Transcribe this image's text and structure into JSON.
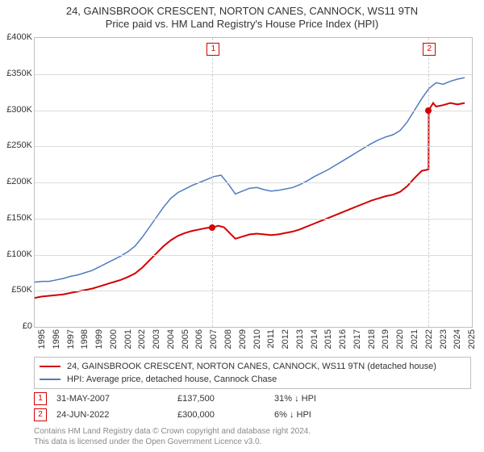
{
  "title_line1": "24, GAINSBROOK CRESCENT, NORTON CANES, CANNOCK, WS11 9TN",
  "title_line2": "Price paid vs. HM Land Registry's House Price Index (HPI)",
  "chart": {
    "type": "line",
    "x_years": [
      1995,
      1996,
      1997,
      1998,
      1999,
      2000,
      2001,
      2002,
      2003,
      2004,
      2005,
      2006,
      2007,
      2008,
      2009,
      2010,
      2011,
      2012,
      2013,
      2014,
      2015,
      2016,
      2017,
      2018,
      2019,
      2020,
      2021,
      2022,
      2023,
      2024,
      2025
    ],
    "xlim": [
      1995,
      2025.5
    ],
    "ylim": [
      0,
      400000
    ],
    "ytick_step": 50000,
    "ytick_labels": [
      "£0",
      "£50K",
      "£100K",
      "£150K",
      "£200K",
      "£250K",
      "£300K",
      "£350K",
      "£400K"
    ],
    "grid_color": "#dcdcdc",
    "border_color": "#bfbfbf",
    "background_color": "#ffffff",
    "series": [
      {
        "name": "property",
        "label": "24, GAINSBROOK CRESCENT, NORTON CANES, CANNOCK, WS11 9TN (detached house)",
        "color": "#d40000",
        "line_width": 2,
        "data": [
          [
            1995.0,
            40000
          ],
          [
            1995.5,
            42000
          ],
          [
            1996.0,
            43000
          ],
          [
            1996.5,
            44000
          ],
          [
            1997.0,
            45000
          ],
          [
            1997.5,
            47000
          ],
          [
            1998.0,
            49000
          ],
          [
            1998.5,
            51000
          ],
          [
            1999.0,
            53000
          ],
          [
            1999.5,
            56000
          ],
          [
            2000.0,
            59000
          ],
          [
            2000.5,
            62000
          ],
          [
            2001.0,
            65000
          ],
          [
            2001.5,
            69000
          ],
          [
            2002.0,
            74000
          ],
          [
            2002.5,
            82000
          ],
          [
            2003.0,
            92000
          ],
          [
            2003.5,
            102000
          ],
          [
            2004.0,
            112000
          ],
          [
            2004.5,
            120000
          ],
          [
            2005.0,
            126000
          ],
          [
            2005.5,
            130000
          ],
          [
            2006.0,
            133000
          ],
          [
            2006.5,
            135000
          ],
          [
            2007.0,
            137000
          ],
          [
            2007.4,
            137500
          ],
          [
            2007.8,
            140000
          ],
          [
            2008.2,
            138000
          ],
          [
            2008.7,
            128000
          ],
          [
            2009.0,
            122000
          ],
          [
            2009.5,
            125000
          ],
          [
            2010.0,
            128000
          ],
          [
            2010.5,
            129000
          ],
          [
            2011.0,
            128000
          ],
          [
            2011.5,
            127000
          ],
          [
            2012.0,
            128000
          ],
          [
            2012.5,
            130000
          ],
          [
            2013.0,
            132000
          ],
          [
            2013.5,
            135000
          ],
          [
            2014.0,
            139000
          ],
          [
            2014.5,
            143000
          ],
          [
            2015.0,
            147000
          ],
          [
            2015.5,
            151000
          ],
          [
            2016.0,
            155000
          ],
          [
            2016.5,
            159000
          ],
          [
            2017.0,
            163000
          ],
          [
            2017.5,
            167000
          ],
          [
            2018.0,
            171000
          ],
          [
            2018.5,
            175000
          ],
          [
            2019.0,
            178000
          ],
          [
            2019.5,
            181000
          ],
          [
            2020.0,
            183000
          ],
          [
            2020.5,
            187000
          ],
          [
            2021.0,
            195000
          ],
          [
            2021.5,
            206000
          ],
          [
            2022.0,
            216000
          ],
          [
            2022.48,
            218000
          ],
          [
            2022.49,
            300000
          ],
          [
            2022.8,
            310000
          ],
          [
            2023.0,
            305000
          ],
          [
            2023.5,
            307000
          ],
          [
            2024.0,
            310000
          ],
          [
            2024.5,
            308000
          ],
          [
            2025.0,
            310000
          ]
        ]
      },
      {
        "name": "hpi",
        "label": "HPI: Average price, detached house, Cannock Chase",
        "color": "#4f7bbf",
        "line_width": 1.5,
        "data": [
          [
            1995.0,
            62000
          ],
          [
            1995.5,
            63000
          ],
          [
            1996.0,
            63000
          ],
          [
            1996.5,
            65000
          ],
          [
            1997.0,
            67000
          ],
          [
            1997.5,
            70000
          ],
          [
            1998.0,
            72000
          ],
          [
            1998.5,
            75000
          ],
          [
            1999.0,
            78000
          ],
          [
            1999.5,
            83000
          ],
          [
            2000.0,
            88000
          ],
          [
            2000.5,
            93000
          ],
          [
            2001.0,
            98000
          ],
          [
            2001.5,
            104000
          ],
          [
            2002.0,
            112000
          ],
          [
            2002.5,
            124000
          ],
          [
            2003.0,
            138000
          ],
          [
            2003.5,
            152000
          ],
          [
            2004.0,
            166000
          ],
          [
            2004.5,
            178000
          ],
          [
            2005.0,
            186000
          ],
          [
            2005.5,
            191000
          ],
          [
            2006.0,
            196000
          ],
          [
            2006.5,
            200000
          ],
          [
            2007.0,
            204000
          ],
          [
            2007.5,
            208000
          ],
          [
            2008.0,
            210000
          ],
          [
            2008.5,
            198000
          ],
          [
            2009.0,
            184000
          ],
          [
            2009.5,
            188000
          ],
          [
            2010.0,
            192000
          ],
          [
            2010.5,
            193000
          ],
          [
            2011.0,
            190000
          ],
          [
            2011.5,
            188000
          ],
          [
            2012.0,
            189000
          ],
          [
            2012.5,
            191000
          ],
          [
            2013.0,
            193000
          ],
          [
            2013.5,
            197000
          ],
          [
            2014.0,
            202000
          ],
          [
            2014.5,
            208000
          ],
          [
            2015.0,
            213000
          ],
          [
            2015.5,
            218000
          ],
          [
            2016.0,
            224000
          ],
          [
            2016.5,
            230000
          ],
          [
            2017.0,
            236000
          ],
          [
            2017.5,
            242000
          ],
          [
            2018.0,
            248000
          ],
          [
            2018.5,
            254000
          ],
          [
            2019.0,
            259000
          ],
          [
            2019.5,
            263000
          ],
          [
            2020.0,
            266000
          ],
          [
            2020.5,
            272000
          ],
          [
            2021.0,
            284000
          ],
          [
            2021.5,
            300000
          ],
          [
            2022.0,
            316000
          ],
          [
            2022.5,
            330000
          ],
          [
            2023.0,
            338000
          ],
          [
            2023.5,
            336000
          ],
          [
            2024.0,
            340000
          ],
          [
            2024.5,
            343000
          ],
          [
            2025.0,
            345000
          ]
        ]
      }
    ],
    "sale_markers": [
      {
        "n": "1",
        "year": 2007.4,
        "price": 137500,
        "color": "#d40000"
      },
      {
        "n": "2",
        "year": 2022.48,
        "price": 300000,
        "color": "#d40000"
      }
    ]
  },
  "legend": {
    "rows": [
      {
        "color": "#d40000",
        "label": "24, GAINSBROOK CRESCENT, NORTON CANES, CANNOCK, WS11 9TN (detached house)"
      },
      {
        "color": "#4f7bbf",
        "label": "HPI: Average price, detached house, Cannock Chase"
      }
    ]
  },
  "sales": [
    {
      "n": "1",
      "color": "#d40000",
      "date": "31-MAY-2007",
      "price": "£137,500",
      "delta": "31% ↓ HPI"
    },
    {
      "n": "2",
      "color": "#d40000",
      "date": "24-JUN-2022",
      "price": "£300,000",
      "delta": "6% ↓ HPI"
    }
  ],
  "footer_line1": "Contains HM Land Registry data © Crown copyright and database right 2024.",
  "footer_line2": "This data is licensed under the Open Government Licence v3.0."
}
